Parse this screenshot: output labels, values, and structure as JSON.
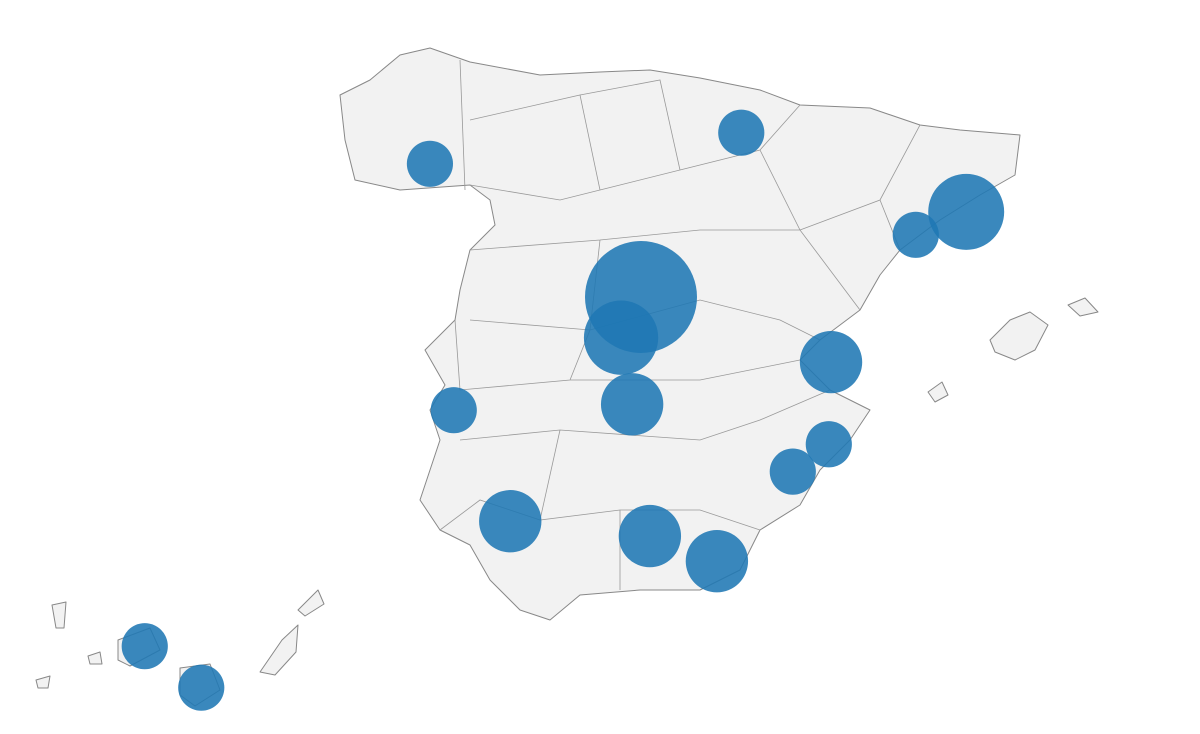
{
  "chart_data": {
    "type": "bubble-map",
    "color": "#1f77b4",
    "lon": [
      -3.7,
      -4.06,
      -3.86,
      -0.27,
      -6.06,
      -3.54,
      -2.33,
      -7.08,
      -7.51,
      -1.89,
      2.17,
      1.26,
      -0.31,
      -0.96,
      -16.25,
      -15.23
    ],
    "lat": [
      40.42,
      39.87,
      38.97,
      39.54,
      37.39,
      37.19,
      36.85,
      38.89,
      42.22,
      42.64,
      41.57,
      41.26,
      38.43,
      38.06,
      28.47,
      27.91
    ],
    "values": [
      100,
      44,
      31,
      31,
      31,
      31,
      31,
      17,
      17,
      17,
      46,
      17,
      17,
      17,
      17,
      17
    ]
  }
}
